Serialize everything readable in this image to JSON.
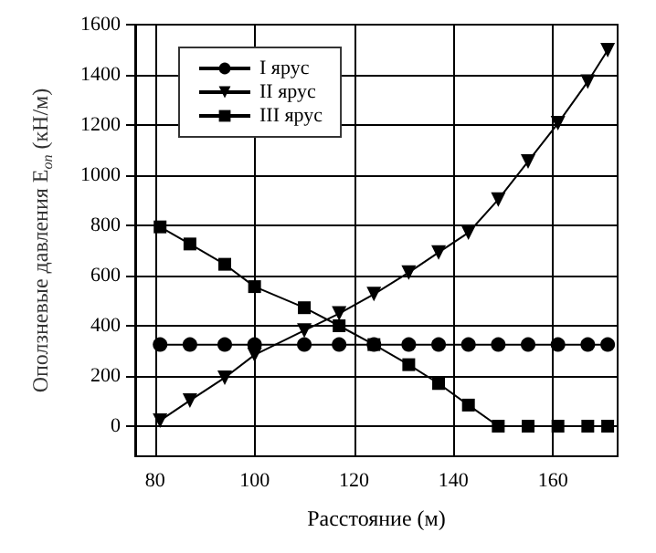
{
  "chart_data": {
    "type": "line",
    "xlabel": "Расстояние (м)",
    "ylabel": "Оползневые давления E$_{оп}$ (кН/м)",
    "x": [
      81,
      87,
      94,
      100,
      110,
      117,
      124,
      131,
      137,
      143,
      149,
      155,
      161,
      167,
      171
    ],
    "series": [
      {
        "name": "I ярус",
        "color": "#000000",
        "marker": "circle",
        "values": [
          325,
          325,
          325,
          325,
          325,
          325,
          325,
          325,
          325,
          325,
          325,
          325,
          325,
          325,
          325
        ]
      },
      {
        "name": "II ярус",
        "color": "#000000",
        "marker": "triangle",
        "values": [
          22,
          102,
          193,
          284,
          381,
          449,
          526,
          612,
          692,
          771,
          903,
          1055,
          1207,
          1373,
          1498
        ]
      },
      {
        "name": "III ярус",
        "color": "#000000",
        "marker": "square",
        "values": [
          794,
          726,
          645,
          556,
          472,
          400,
          325,
          245,
          170,
          84,
          0,
          0,
          0,
          0,
          0
        ]
      }
    ],
    "xlim": [
      76,
      173
    ],
    "xticks": [
      80,
      100,
      120,
      140,
      160
    ],
    "ylim": [
      -120,
      1600
    ],
    "yticks": [
      0,
      200,
      400,
      600,
      800,
      1000,
      1200,
      1400,
      1600
    ],
    "grid": true,
    "legend": "top left",
    "line_style": "solid"
  }
}
